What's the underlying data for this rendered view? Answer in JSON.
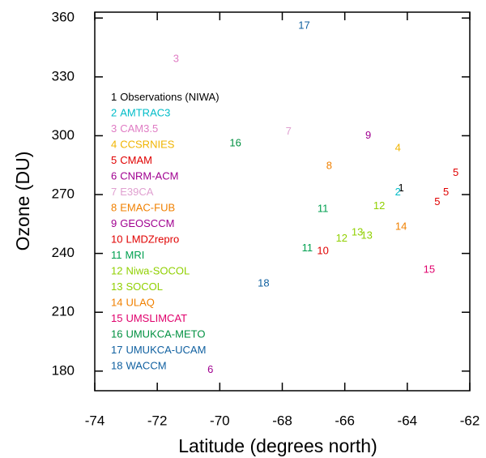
{
  "chart_data": {
    "type": "scatter",
    "x_label": "Latitude (degrees north)",
    "y_label": "Ozone (DU)",
    "xlim": [
      -74,
      -62
    ],
    "ylim": [
      170,
      363
    ],
    "xticks": [
      -74,
      -72,
      -70,
      -68,
      -66,
      -64,
      -62
    ],
    "yticks": [
      180,
      210,
      240,
      270,
      300,
      330,
      360
    ],
    "series": [
      {
        "marker": "1",
        "name": "Observations (NIWA)",
        "color": "#000000",
        "x": [
          -64.2
        ],
        "y": [
          273
        ]
      },
      {
        "marker": "2",
        "name": "AMTRAC3",
        "color": "#00bcc8",
        "x": [
          -64.3
        ],
        "y": [
          271
        ]
      },
      {
        "marker": "3",
        "name": "CAM3.5",
        "color": "#e07cc4",
        "x": [
          -71.4
        ],
        "y": [
          339
        ]
      },
      {
        "marker": "4",
        "name": "CCSRNIES",
        "color": "#f0b400",
        "x": [
          -64.3
        ],
        "y": [
          293.5
        ]
      },
      {
        "marker": "5",
        "name": "CMAM",
        "color": "#e00000",
        "x": [
          -62.45,
          -62.76,
          -63.04
        ],
        "y": [
          281,
          271,
          266
        ]
      },
      {
        "marker": "6",
        "name": "CNRM-ACM",
        "color": "#a00090",
        "x": [
          -70.3
        ],
        "y": [
          180.5
        ]
      },
      {
        "marker": "7",
        "name": "E39CA",
        "color": "#e0a0d0",
        "x": [
          -67.8
        ],
        "y": [
          302
        ]
      },
      {
        "marker": "8",
        "name": "EMAC-FUB",
        "color": "#f08000",
        "x": [
          -66.5
        ],
        "y": [
          284.5
        ]
      },
      {
        "marker": "9",
        "name": "GEOSCCM",
        "color": "#a00090",
        "x": [
          -65.25
        ],
        "y": [
          300
        ]
      },
      {
        "marker": "10",
        "name": "LMDZrepro",
        "color": "#e00000",
        "x": [
          -66.7
        ],
        "y": [
          241
        ]
      },
      {
        "marker": "11",
        "name": "MRI",
        "color": "#00a050",
        "x": [
          -66.7,
          -67.2
        ],
        "y": [
          262.5,
          242.5
        ]
      },
      {
        "marker": "12",
        "name": "Niwa-SOCOL",
        "color": "#90d000",
        "x": [
          -64.9,
          -66.1
        ],
        "y": [
          264,
          247.5
        ]
      },
      {
        "marker": "13",
        "name": "SOCOL",
        "color": "#90d000",
        "x": [
          -65.6,
          -65.3
        ],
        "y": [
          250.5,
          249
        ]
      },
      {
        "marker": "14",
        "name": "ULAQ",
        "color": "#f08000",
        "x": [
          -64.2
        ],
        "y": [
          253.5
        ]
      },
      {
        "marker": "15",
        "name": "UMSLIMCAT",
        "color": "#e0006c",
        "x": [
          -63.3
        ],
        "y": [
          231.5
        ]
      },
      {
        "marker": "16",
        "name": "UMUKCA-METO",
        "color": "#009040",
        "x": [
          -69.5
        ],
        "y": [
          296
        ]
      },
      {
        "marker": "17",
        "name": "UMUKCA-UCAM",
        "color": "#1060a0",
        "x": [
          -67.3
        ],
        "y": [
          356
        ]
      },
      {
        "marker": "18",
        "name": "WACCM",
        "color": "#1060a0",
        "x": [
          -68.6
        ],
        "y": [
          224.5
        ]
      }
    ]
  }
}
